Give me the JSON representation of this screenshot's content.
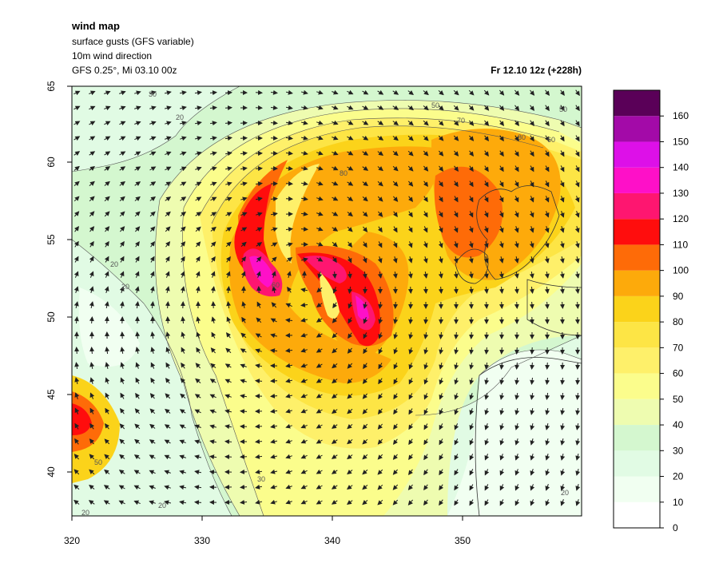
{
  "header": {
    "title": "wind map",
    "subtitle_1": "surface gusts (GFS variable)",
    "subtitle_2": "10m wind direction",
    "subtitle_3": "GFS 0.25°, Mi 03.10 00z",
    "valid_time": "Fr 12.10 12z (+228h)"
  },
  "axes": {
    "x_ticks": [
      "320",
      "330",
      "340",
      "350"
    ],
    "y_ticks": [
      "40",
      "45",
      "50",
      "55",
      "60",
      "65"
    ]
  },
  "legend": {
    "levels": [
      "0",
      "10",
      "20",
      "30",
      "40",
      "50",
      "60",
      "70",
      "80",
      "90",
      "100",
      "110",
      "120",
      "130",
      "140",
      "150",
      "160"
    ],
    "colors": [
      "#ffffff",
      "#f1fff1",
      "#e1fbe4",
      "#d4f7cf",
      "#eefcb0",
      "#fbfd8c",
      "#fef06a",
      "#fde545",
      "#fbd31a",
      "#fdaa0b",
      "#fe6b08",
      "#ff0d0d",
      "#fe1670",
      "#fe10c8",
      "#dd10e8",
      "#a30aa8",
      "#5a0058"
    ]
  },
  "contour_labels": [
    "30",
    "50",
    "50",
    "70",
    "80",
    "60",
    "20",
    "20",
    "20",
    "60",
    "80",
    "50",
    "30",
    "20",
    "20",
    "20"
  ]
}
